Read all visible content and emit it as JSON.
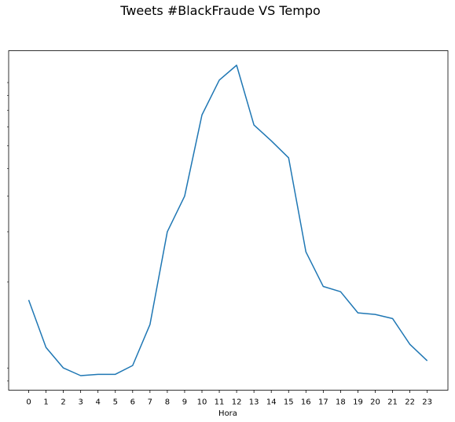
{
  "chart_data": {
    "type": "line",
    "title": "Tweets #BlackFraude VS Tempo",
    "xlabel": "Hora",
    "ylabel": "",
    "x": [
      0,
      1,
      2,
      3,
      4,
      5,
      6,
      7,
      8,
      9,
      10,
      11,
      12,
      13,
      14,
      15,
      16,
      17,
      18,
      19,
      20,
      21,
      22,
      23
    ],
    "x_tick_labels": [
      "0",
      "1",
      "2",
      "3",
      "4",
      "5",
      "6",
      "7",
      "8",
      "9",
      "10",
      "11",
      "12",
      "13",
      "14",
      "15",
      "16",
      "17",
      "18",
      "19",
      "20",
      "21",
      "22",
      "23"
    ],
    "series": [
      {
        "name": "",
        "values": [
          1730,
          1180,
          1000,
          940,
          950,
          950,
          1020,
          1420,
          3000,
          4000,
          7700,
          10200,
          11500,
          7100,
          6250,
          5450,
          2550,
          1930,
          1850,
          1560,
          1540,
          1490,
          1210,
          1060
        ],
        "color": "#1f77b4"
      }
    ],
    "yscale": "log",
    "ylim": [
      900,
      13000
    ],
    "y_tick_labels_visible": false,
    "grid": false,
    "legend": "none"
  }
}
